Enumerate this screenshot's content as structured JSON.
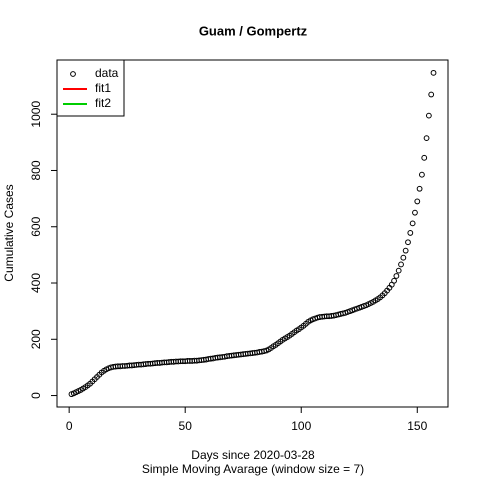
{
  "chart_data": {
    "type": "scatter",
    "title": "Guam / Gompertz",
    "xlabel": "Days since 2020-03-28",
    "subtitle": "Simple Moving Avarage (window size = 7)",
    "ylabel": "Cumulative Cases",
    "x": [
      1,
      2,
      3,
      4,
      5,
      6,
      7,
      8,
      9,
      10,
      11,
      12,
      13,
      14,
      15,
      16,
      17,
      18,
      19,
      20,
      21,
      22,
      23,
      24,
      25,
      26,
      27,
      28,
      29,
      30,
      31,
      32,
      33,
      34,
      35,
      36,
      37,
      38,
      39,
      40,
      41,
      42,
      43,
      44,
      45,
      46,
      47,
      48,
      49,
      50,
      51,
      52,
      53,
      54,
      55,
      56,
      57,
      58,
      59,
      60,
      61,
      62,
      63,
      64,
      65,
      66,
      67,
      68,
      69,
      70,
      71,
      72,
      73,
      74,
      75,
      76,
      77,
      78,
      79,
      80,
      81,
      82,
      83,
      84,
      85,
      86,
      87,
      88,
      89,
      90,
      91,
      92,
      93,
      94,
      95,
      96,
      97,
      98,
      99,
      100,
      101,
      102,
      103,
      104,
      105,
      106,
      107,
      108,
      109,
      110,
      111,
      112,
      113,
      114,
      115,
      116,
      117,
      118,
      119,
      120,
      121,
      122,
      123,
      124,
      125,
      126,
      127,
      128,
      129,
      130,
      131,
      132,
      133,
      134,
      135,
      136,
      137,
      138,
      139,
      140,
      141,
      142,
      143,
      144,
      145,
      146,
      147,
      148,
      149,
      150,
      151,
      152,
      153,
      154,
      155,
      156,
      157
    ],
    "series": [
      {
        "name": "data",
        "color": "#000000",
        "values": [
          5,
          8,
          12,
          16,
          20,
          25,
          30,
          36,
          42,
          50,
          58,
          66,
          74,
          82,
          88,
          93,
          97,
          100,
          102,
          103,
          104,
          104,
          105,
          105,
          106,
          107,
          107,
          108,
          109,
          110,
          110,
          111,
          112,
          113,
          113,
          114,
          115,
          116,
          116,
          117,
          118,
          118,
          119,
          120,
          120,
          121,
          121,
          122,
          122,
          122,
          123,
          123,
          123,
          124,
          124,
          125,
          126,
          127,
          128,
          130,
          131,
          132,
          134,
          135,
          136,
          137,
          138,
          140,
          141,
          142,
          143,
          144,
          145,
          146,
          147,
          148,
          149,
          150,
          151,
          152,
          153,
          155,
          156,
          158,
          160,
          164,
          169,
          175,
          180,
          186,
          192,
          198,
          203,
          208,
          213,
          219,
          225,
          231,
          236,
          242,
          248,
          255,
          262,
          267,
          271,
          274,
          277,
          279,
          280,
          281,
          282,
          282,
          283,
          284,
          286,
          288,
          290,
          292,
          294,
          297,
          300,
          303,
          306,
          309,
          312,
          315,
          318,
          321,
          325,
          329,
          333,
          338,
          343,
          349,
          356,
          364,
          373,
          383,
          394,
          408,
          425,
          444,
          466,
          490,
          515,
          545,
          578,
          612,
          650,
          690,
          735,
          785,
          845,
          915,
          995,
          1070,
          1147
        ]
      }
    ],
    "legend": {
      "position": "topleft",
      "items": [
        {
          "name": "fit1",
          "color": "#ff0000"
        },
        {
          "name": "fit2",
          "color": "#00cd00"
        }
      ]
    },
    "xlim": [
      -5.24,
      163.24
    ],
    "xticks": [
      0,
      50,
      100,
      150
    ],
    "ylim": [
      -40.7,
      1192.7
    ],
    "yticks": [
      0,
      200,
      400,
      600,
      800,
      1000
    ]
  }
}
